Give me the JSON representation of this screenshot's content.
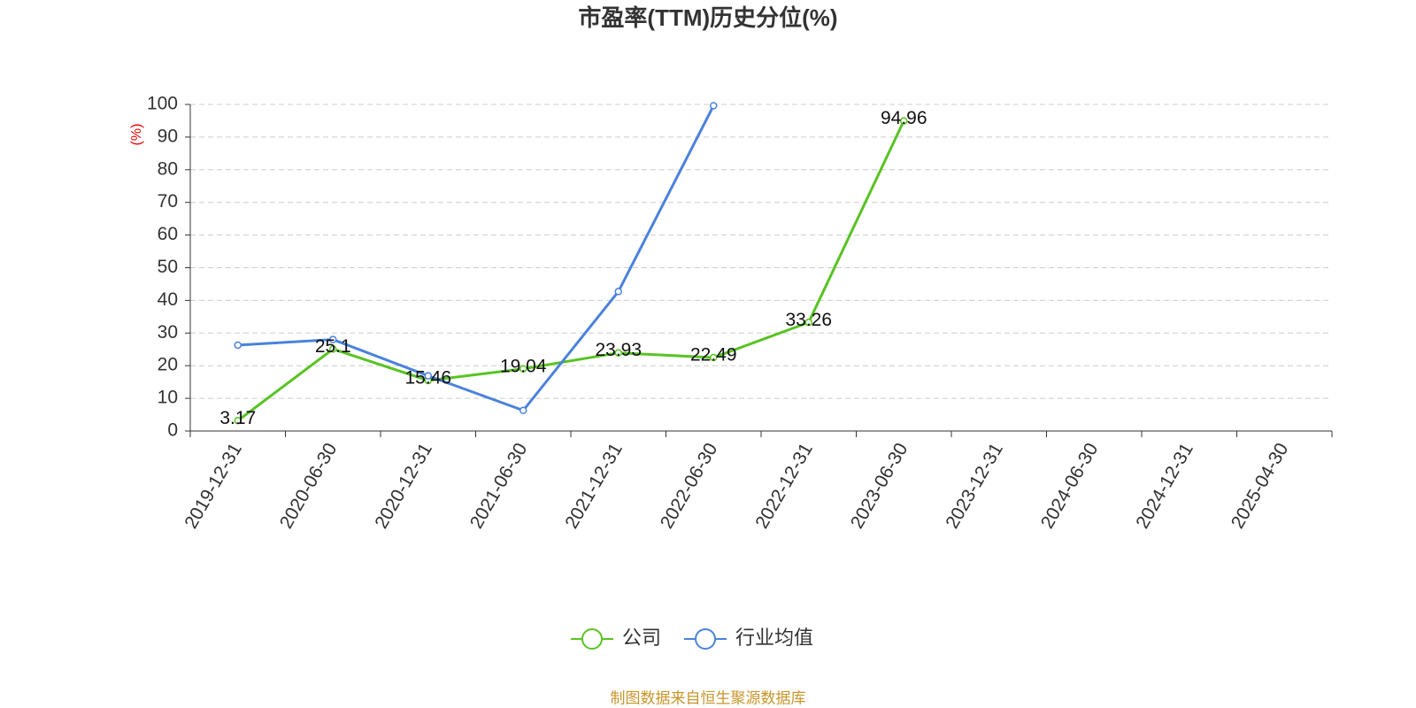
{
  "chart_data": {
    "type": "line",
    "title": "市盈率(TTM)历史分位(%)",
    "y_label": "(%)",
    "source": "制图数据来自恒生聚源数据库",
    "categories": [
      "2019-12-31",
      "2020-06-30",
      "2020-12-31",
      "2021-06-30",
      "2021-12-31",
      "2022-06-30",
      "2022-12-31",
      "2023-06-30",
      "2023-12-31",
      "2024-06-30",
      "2024-12-31",
      "2025-04-30"
    ],
    "series": [
      {
        "name": "公司",
        "color": "#58c322",
        "values": [
          3.17,
          25.1,
          15.46,
          19.04,
          23.93,
          22.49,
          33.26,
          94.96,
          null,
          null,
          null,
          null
        ],
        "show_labels": true
      },
      {
        "name": "行业均值",
        "color": "#4a82dc",
        "values": [
          26.3,
          28.0,
          16.9,
          6.3,
          42.7,
          99.6,
          null,
          null,
          null,
          null,
          null,
          null
        ],
        "show_labels": false
      }
    ],
    "ylim": [
      0,
      100
    ],
    "yticks": [
      0,
      10,
      20,
      30,
      40,
      50,
      60,
      70,
      80,
      90,
      100
    ],
    "grid": true,
    "legend": "bottom"
  }
}
